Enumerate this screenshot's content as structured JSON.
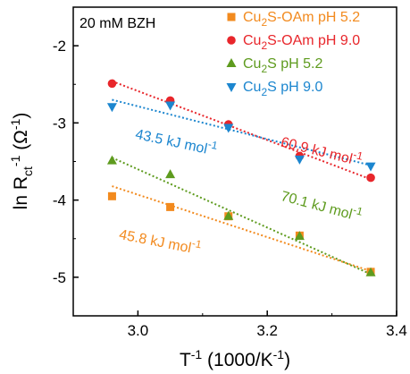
{
  "chart_data": {
    "type": "scatter",
    "condition_label": "20 mM BZH",
    "xlabel": {
      "main": "T",
      "sup": "-1",
      "rest": " (1000/K",
      "sup2": "-1",
      "end": ")"
    },
    "ylabel": {
      "main": "ln R",
      "sub": "ct",
      "sup": "-1",
      "rest": " (Ω",
      "sup2": "-1",
      "end": ")"
    },
    "xlim": [
      2.9,
      3.4
    ],
    "ylim": [
      -5.5,
      -1.5
    ],
    "xticks": [
      {
        "value": 3.0,
        "label": "3.0"
      },
      {
        "value": 3.2,
        "label": "3.2"
      },
      {
        "value": 3.4,
        "label": "3.4"
      }
    ],
    "yticks": [
      {
        "value": -2,
        "label": "-2"
      },
      {
        "value": -3,
        "label": "-3"
      },
      {
        "value": -4,
        "label": "-4"
      },
      {
        "value": -5,
        "label": "-5"
      }
    ],
    "legend_position": "top-right",
    "series": [
      {
        "name": {
          "a": "Cu",
          "sub": "2",
          "b": "S-OAm  pH 5.2"
        },
        "color": "#F28A1E",
        "marker": "square",
        "x": [
          2.96,
          3.05,
          3.14,
          3.25,
          3.36
        ],
        "y": [
          -3.95,
          -4.09,
          -4.21,
          -4.46,
          -4.93
        ],
        "fit": {
          "x": [
            2.96,
            3.36
          ],
          "y": [
            -3.82,
            -4.92
          ]
        }
      },
      {
        "name": {
          "a": "Cu",
          "sub": "2",
          "b": "S-OAm  pH 9.0"
        },
        "color": "#E8262B",
        "marker": "circle",
        "x": [
          2.96,
          3.05,
          3.14,
          3.25,
          3.36
        ],
        "y": [
          -2.49,
          -2.71,
          -3.02,
          -3.43,
          -3.71
        ],
        "fit": {
          "x": [
            2.96,
            3.36
          ],
          "y": [
            -2.46,
            -3.73
          ]
        }
      },
      {
        "name": {
          "a": "Cu",
          "sub": "2",
          "b": "S pH 5.2"
        },
        "color": "#5E9B1E",
        "marker": "triangle-up",
        "x": [
          2.96,
          3.05,
          3.14,
          3.25,
          3.36
        ],
        "y": [
          -3.49,
          -3.67,
          -4.21,
          -4.47,
          -4.94
        ],
        "fit": {
          "x": [
            2.96,
            3.36
          ],
          "y": [
            -3.45,
            -4.96
          ]
        }
      },
      {
        "name": {
          "a": "Cu",
          "sub": "2",
          "b": "S pH 9.0"
        },
        "color": "#1C86CF",
        "marker": "triangle-down",
        "x": [
          2.96,
          3.05,
          3.14,
          3.25,
          3.36
        ],
        "y": [
          -2.79,
          -2.77,
          -3.06,
          -3.47,
          -3.56
        ],
        "fit": {
          "x": [
            2.96,
            3.36
          ],
          "y": [
            -2.7,
            -3.55
          ]
        }
      }
    ],
    "annotations": [
      {
        "text": "43.5 kJ mol",
        "sup": "-1",
        "color": "#1C86CF",
        "x": 2.995,
        "y": -3.2,
        "rotate": 12
      },
      {
        "text": "60.9 kJ mol",
        "sup": "-1",
        "color": "#E8262B",
        "x": 3.22,
        "y": -3.3,
        "rotate": 14
      },
      {
        "text": "70.1 kJ mol",
        "sup": "-1",
        "color": "#5E9B1E",
        "x": 3.22,
        "y": -4.0,
        "rotate": 15
      },
      {
        "text": "45.8 kJ mol",
        "sup": "-1",
        "color": "#F28A1E",
        "x": 2.97,
        "y": -4.5,
        "rotate": 11
      }
    ]
  }
}
